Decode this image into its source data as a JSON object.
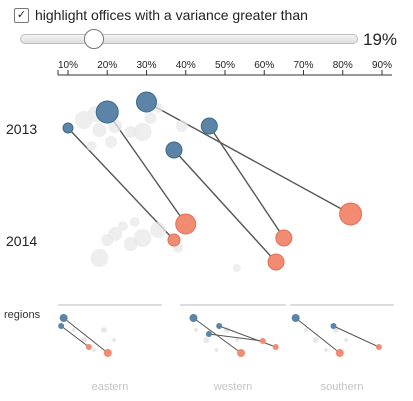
{
  "controls": {
    "checkbox_checked": true,
    "checkbox_mark": "✓",
    "checkbox_label": "highlight offices with a variance greater than",
    "threshold_percent": 19,
    "threshold_label": "19%",
    "slider_range": [
      0,
      100
    ]
  },
  "colors": {
    "highlight_2013": "#5b84a6",
    "highlight_2014": "#f18c73",
    "background_dot": "#e8e8e8",
    "connector": "#555555"
  },
  "chart_data": {
    "type": "scatter",
    "x_ticks": [
      "10%",
      "20%",
      "30%",
      "40%",
      "50%",
      "60%",
      "70%",
      "80%",
      "90%"
    ],
    "x_range": [
      0.075,
      0.9
    ],
    "rows": [
      "2013",
      "2014"
    ],
    "highlighted": [
      {
        "x2013": 0.1,
        "x2014": 0.37,
        "size2013": 5,
        "size2014": 6
      },
      {
        "x2013": 0.2,
        "x2014": 0.4,
        "size2013": 11,
        "size2014": 10
      },
      {
        "x2013": 0.3,
        "x2014": 0.82,
        "size2013": 10,
        "size2014": 11
      },
      {
        "x2013": 0.37,
        "x2014": 0.63,
        "size2013": 8,
        "size2014": 8
      },
      {
        "x2013": 0.46,
        "x2014": 0.65,
        "size2013": 8,
        "size2014": 8
      }
    ],
    "background_2013": [
      {
        "x": 0.14,
        "size": 9
      },
      {
        "x": 0.17,
        "size": 8
      },
      {
        "x": 0.18,
        "size": 7
      },
      {
        "x": 0.22,
        "size": 7
      },
      {
        "x": 0.26,
        "size": 6
      },
      {
        "x": 0.29,
        "size": 9
      },
      {
        "x": 0.31,
        "size": 6
      },
      {
        "x": 0.21,
        "size": 6
      },
      {
        "x": 0.39,
        "size": 6
      },
      {
        "x": 0.33,
        "size": 5
      },
      {
        "x": 0.16,
        "size": 5
      }
    ],
    "background_2014": [
      {
        "x": 0.18,
        "size": 9
      },
      {
        "x": 0.22,
        "size": 7
      },
      {
        "x": 0.26,
        "size": 7
      },
      {
        "x": 0.29,
        "size": 9
      },
      {
        "x": 0.33,
        "size": 8
      },
      {
        "x": 0.2,
        "size": 6
      },
      {
        "x": 0.24,
        "size": 5
      },
      {
        "x": 0.38,
        "size": 5
      },
      {
        "x": 0.53,
        "size": 4
      },
      {
        "x": 0.27,
        "size": 5
      }
    ],
    "regions_title": "regions",
    "regions": [
      {
        "name": "eastern",
        "highlighted": [
          {
            "x2013": 0.12,
            "x2014": 0.47
          },
          {
            "x2013": 0.1,
            "x2014": 0.32
          }
        ]
      },
      {
        "name": "western",
        "highlighted": [
          {
            "x2013": 0.18,
            "x2014": 0.55
          },
          {
            "x2013": 0.38,
            "x2014": 0.82
          },
          {
            "x2013": 0.3,
            "x2014": 0.72
          }
        ]
      },
      {
        "name": "southern",
        "highlighted": [
          {
            "x2013": 0.12,
            "x2014": 0.47
          },
          {
            "x2013": 0.42,
            "x2014": 0.78
          }
        ]
      }
    ]
  }
}
